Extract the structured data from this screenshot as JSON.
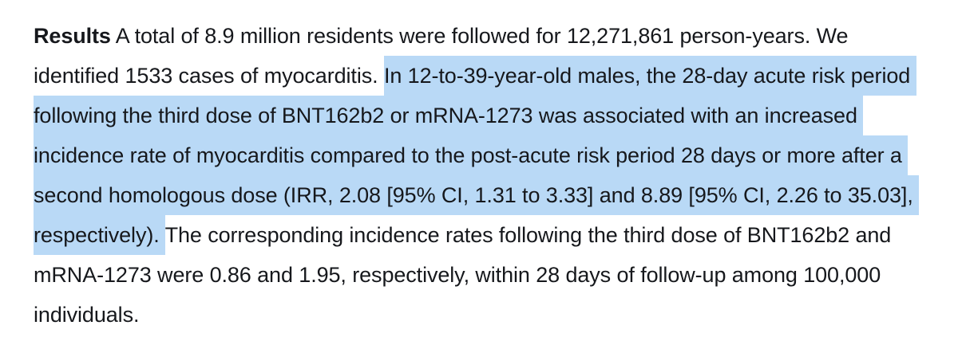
{
  "colors": {
    "highlight": "#b9d9f6",
    "text": "#16181c",
    "background": "#ffffff"
  },
  "paragraph": {
    "section_label": "Results",
    "lines": [
      {
        "bold": "Results",
        "normal": " A total of 8.9 million residents were followed for 12,271,861 person-years. We"
      },
      {
        "normal": "identified 1533 cases of myocarditis. ",
        "highlight": "In 12-to-39-year-old males, the 28-day acute risk period "
      },
      {
        "highlight": "following the third dose of BNT162b2 or mRNA-1273 was associated with an increased "
      },
      {
        "highlight": "incidence rate of myocarditis compared to the post-acute risk period 28 days or more after a "
      },
      {
        "highlight": "second homologous dose (IRR, 2.08 [95% CI, 1.31 to 3.33] and 8.89 [95% CI, 2.26 to 35.03], "
      },
      {
        "highlight": "respectively). ",
        "after": "The corresponding incidence rates following the third dose of BNT162b2 and"
      },
      {
        "after": "mRNA-1273 were 0.86 and 1.95, respectively, within 28 days of follow-up among 100,000"
      },
      {
        "after": "individuals."
      }
    ]
  }
}
